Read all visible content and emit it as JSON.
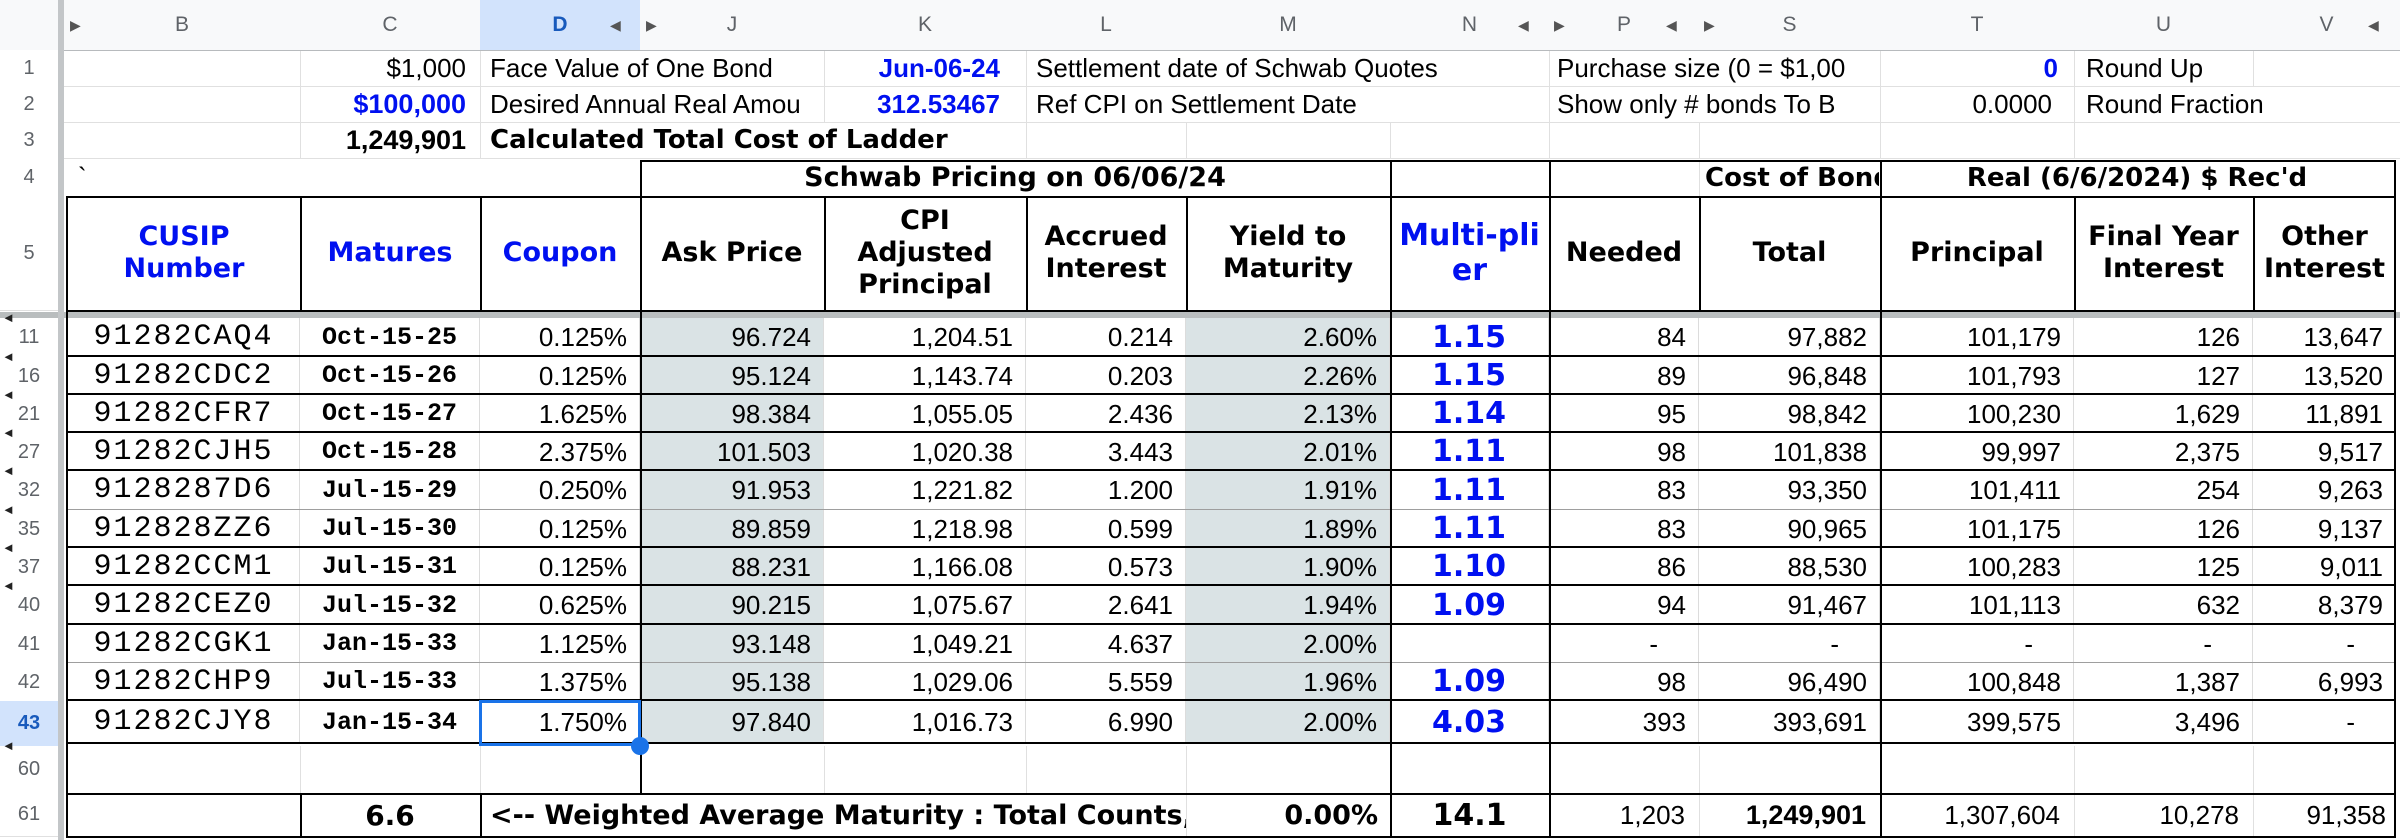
{
  "colors": {
    "link_blue": "#0010f0",
    "selection_blue": "#1a73e8",
    "selected_header_bg": "#d2e3fc",
    "shaded_column_bg": "#dae3e5",
    "gridline": "#e0e0e0",
    "table_border": "#000000"
  },
  "icons": {
    "hidden_col_left": "◀",
    "hidden_col_right": "▶",
    "hidden_row": "◄"
  },
  "selection": {
    "column": "D",
    "row": "43"
  },
  "column_headers": [
    "B",
    "C",
    "D",
    "J",
    "K",
    "L",
    "M",
    "N",
    "P",
    "S",
    "T",
    "U",
    "V"
  ],
  "row_headers": [
    "1",
    "2",
    "3",
    "4",
    "5",
    "11",
    "16",
    "21",
    "27",
    "32",
    "35",
    "37",
    "40",
    "41",
    "42",
    "43",
    "60",
    "61"
  ],
  "top": {
    "row1": {
      "c": "$1,000",
      "d": "Face Value of One Bond",
      "k": "Jun-06-24",
      "l": "Settlement date of Schwab Quotes",
      "p": "Purchase size (0 = $1,00",
      "t": "0",
      "u": "Round Up"
    },
    "row2": {
      "c": "$100,000",
      "d": "Desired Annual Real Amou",
      "k": "312.53467",
      "l": "Ref CPI on Settlement Date",
      "p": "Show only # bonds To B",
      "t": "0.0000",
      "u": "Round Fraction"
    },
    "row3": {
      "c": "1,249,901",
      "d": "Calculated Total Cost of Ladder"
    },
    "row4": {
      "b": "`",
      "schwab": "Schwab Pricing on 06/06/24",
      "cost": "Cost of Bonds",
      "real": "Real (6/6/2024) $ Rec'd"
    }
  },
  "table": {
    "headers": {
      "cusip": "CUSIP Number",
      "matures": "Matures",
      "coupon": "Coupon",
      "ask": "Ask Price",
      "cpi": "CPI Adjusted Principal",
      "accrued": "Accrued Interest",
      "yield": "Yield to Maturity",
      "mult": "Multi-plier",
      "needed": "Needed",
      "total": "Total",
      "principal": "Principal",
      "fyi": "Final Year Interest",
      "other": "Other Interest"
    },
    "rows": [
      {
        "row": "11",
        "hidden_above": true,
        "cusip": "91282CAQ4",
        "matures": "Oct-15-25",
        "coupon": "0.125%",
        "ask": "96.724",
        "cpi": "1,204.51",
        "accrued": "0.214",
        "yield": "2.60%",
        "mult": "1.15",
        "needed": "84",
        "total": "97,882",
        "principal": "101,179",
        "fyi": "126",
        "other": "13,647"
      },
      {
        "row": "16",
        "hidden_above": true,
        "cusip": "91282CDC2",
        "matures": "Oct-15-26",
        "coupon": "0.125%",
        "ask": "95.124",
        "cpi": "1,143.74",
        "accrued": "0.203",
        "yield": "2.26%",
        "mult": "1.15",
        "needed": "89",
        "total": "96,848",
        "principal": "101,793",
        "fyi": "127",
        "other": "13,520"
      },
      {
        "row": "21",
        "hidden_above": true,
        "cusip": "91282CFR7",
        "matures": "Oct-15-27",
        "coupon": "1.625%",
        "ask": "98.384",
        "cpi": "1,055.05",
        "accrued": "2.436",
        "yield": "2.13%",
        "mult": "1.14",
        "needed": "95",
        "total": "98,842",
        "principal": "100,230",
        "fyi": "1,629",
        "other": "11,891"
      },
      {
        "row": "27",
        "hidden_above": true,
        "cusip": "91282CJH5",
        "matures": "Oct-15-28",
        "coupon": "2.375%",
        "ask": "101.503",
        "cpi": "1,020.38",
        "accrued": "3.443",
        "yield": "2.01%",
        "mult": "1.11",
        "needed": "98",
        "total": "101,838",
        "principal": "99,997",
        "fyi": "2,375",
        "other": "9,517"
      },
      {
        "row": "32",
        "hidden_above": true,
        "cusip": "9128287D6",
        "matures": "Jul-15-29",
        "coupon": "0.250%",
        "ask": "91.953",
        "cpi": "1,221.82",
        "accrued": "1.200",
        "yield": "1.91%",
        "mult": "1.11",
        "needed": "83",
        "total": "93,350",
        "principal": "101,411",
        "fyi": "254",
        "other": "9,263"
      },
      {
        "row": "35",
        "hidden_above": true,
        "cusip": "912828ZZ6",
        "matures": "Jul-15-30",
        "coupon": "0.125%",
        "ask": "89.859",
        "cpi": "1,218.98",
        "accrued": "0.599",
        "yield": "1.89%",
        "mult": "1.11",
        "needed": "83",
        "total": "90,965",
        "principal": "101,175",
        "fyi": "126",
        "other": "9,137"
      },
      {
        "row": "37",
        "hidden_above": true,
        "cusip": "91282CCM1",
        "matures": "Jul-15-31",
        "coupon": "0.125%",
        "ask": "88.231",
        "cpi": "1,166.08",
        "accrued": "0.573",
        "yield": "1.90%",
        "mult": "1.10",
        "needed": "86",
        "total": "88,530",
        "principal": "100,283",
        "fyi": "125",
        "other": "9,011"
      },
      {
        "row": "40",
        "hidden_above": true,
        "cusip": "91282CEZ0",
        "matures": "Jul-15-32",
        "coupon": "0.625%",
        "ask": "90.215",
        "cpi": "1,075.67",
        "accrued": "2.641",
        "yield": "1.94%",
        "mult": "1.09",
        "needed": "94",
        "total": "91,467",
        "principal": "101,113",
        "fyi": "632",
        "other": "8,379"
      },
      {
        "row": "41",
        "hidden_above": false,
        "cusip": "91282CGK1",
        "matures": "Jan-15-33",
        "coupon": "1.125%",
        "ask": "93.148",
        "cpi": "1,049.21",
        "accrued": "4.637",
        "yield": "2.00%",
        "mult": "",
        "needed": "-",
        "total": "-",
        "principal": "-",
        "fyi": "-",
        "other": "-"
      },
      {
        "row": "42",
        "hidden_above": false,
        "cusip": "91282CHP9",
        "matures": "Jul-15-33",
        "coupon": "1.375%",
        "ask": "95.138",
        "cpi": "1,029.06",
        "accrued": "5.559",
        "yield": "1.96%",
        "mult": "1.09",
        "needed": "98",
        "total": "96,490",
        "principal": "100,848",
        "fyi": "1,387",
        "other": "6,993"
      },
      {
        "row": "43",
        "hidden_above": false,
        "cusip": "91282CJY8",
        "matures": "Jan-15-34",
        "coupon": "1.750%",
        "ask": "97.840",
        "cpi": "1,016.73",
        "accrued": "6.990",
        "yield": "2.00%",
        "mult": "4.03",
        "needed": "393",
        "total": "393,691",
        "principal": "399,575",
        "fyi": "3,496",
        "other": "-"
      }
    ],
    "summary": {
      "row": "61",
      "years": "6.6",
      "note": "<-- Weighted Average Maturity : Total Counts, C",
      "pct": "0.00%",
      "mult": "14.1",
      "needed": "1,203",
      "total": "1,249,901",
      "principal": "1,307,604",
      "fyi": "10,278",
      "other": "91,358"
    }
  }
}
